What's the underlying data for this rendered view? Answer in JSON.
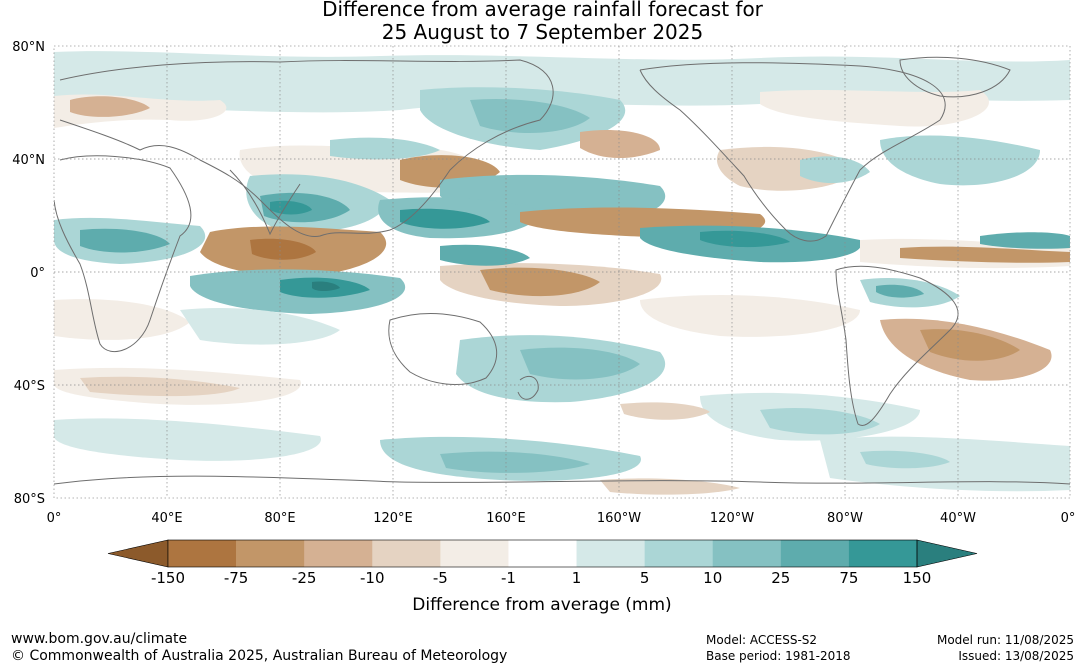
{
  "title": {
    "line1": "Difference from average rainfall forecast for",
    "line2": "25 August to 7 September 2025"
  },
  "map": {
    "lat_labels": [
      "80°N",
      "40°N",
      "0°",
      "40°S",
      "80°S"
    ],
    "lon_labels": [
      "0°",
      "40°E",
      "80°E",
      "120°E",
      "160°E",
      "160°W",
      "120°W",
      "80°W",
      "40°W",
      "0°"
    ],
    "colors": {
      "ocean_bg": "#ffffff",
      "coastline": "#6e6e6e",
      "grid": "#8a8a8a"
    }
  },
  "legend": {
    "title": "Difference from average (mm)",
    "tick_labels": [
      "-150",
      "-75",
      "-25",
      "-10",
      "-5",
      "-1",
      "1",
      "5",
      "10",
      "25",
      "75",
      "150"
    ],
    "colors": [
      "#8c5a2b",
      "#ad7540",
      "#c29668",
      "#d5b193",
      "#e5d3c2",
      "#f3ede6",
      "#ffffff",
      "#d5e9e8",
      "#abd6d6",
      "#85c1c2",
      "#5eacad",
      "#359897",
      "#2a7f7e"
    ]
  },
  "footer": {
    "url": "www.bom.gov.au/climate",
    "copyright": "© Commonwealth of Australia 2025, Australian Bureau of Meteorology",
    "model": "Model: ACCESS-S2",
    "base_period": "Base period: 1981-2018",
    "model_run": "Model run: 11/08/2025",
    "issued": "Issued: 13/08/2025"
  }
}
